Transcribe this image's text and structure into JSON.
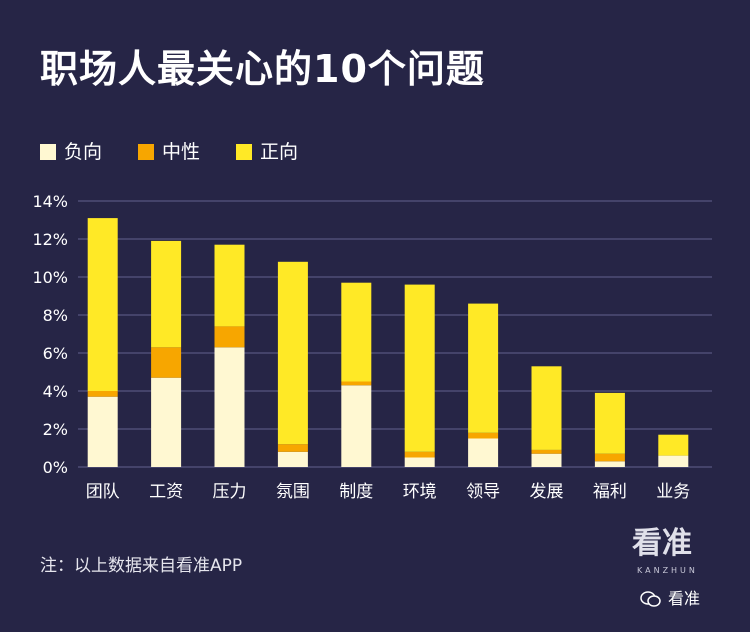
{
  "title": "职场人最关心的10个问题",
  "note": "注：以上数据来自看准APP",
  "logo": {
    "text": "看准",
    "sub": "KANZHUN"
  },
  "wechat": {
    "icon": "wechat-icon",
    "label": "看准"
  },
  "colors": {
    "background": "#262546",
    "负向": "#FFF8D2",
    "中性": "#F7A600",
    "正向": "#FFE926",
    "grid": "#44436a"
  },
  "chart_data": {
    "type": "bar",
    "stacked": true,
    "title": "职场人最关心的10个问题",
    "categories": [
      "团队",
      "工资",
      "压力",
      "氛围",
      "制度",
      "环境",
      "领导",
      "发展",
      "福利",
      "业务"
    ],
    "series": [
      {
        "name": "负向",
        "values": [
          3.7,
          4.7,
          6.3,
          0.8,
          4.3,
          0.5,
          1.5,
          0.7,
          0.3,
          0.6
        ]
      },
      {
        "name": "中性",
        "values": [
          0.3,
          1.6,
          1.1,
          0.4,
          0.2,
          0.3,
          0.3,
          0.2,
          0.4,
          0.0
        ]
      },
      {
        "name": "正向",
        "values": [
          9.1,
          5.6,
          4.3,
          9.6,
          5.2,
          8.8,
          6.8,
          4.4,
          3.2,
          1.1
        ]
      }
    ],
    "yticks": [
      "0%",
      "2%",
      "4%",
      "6%",
      "8%",
      "10%",
      "12%",
      "14%"
    ],
    "ylim": [
      0,
      14
    ],
    "grid": true,
    "legend_position": "top-left"
  }
}
